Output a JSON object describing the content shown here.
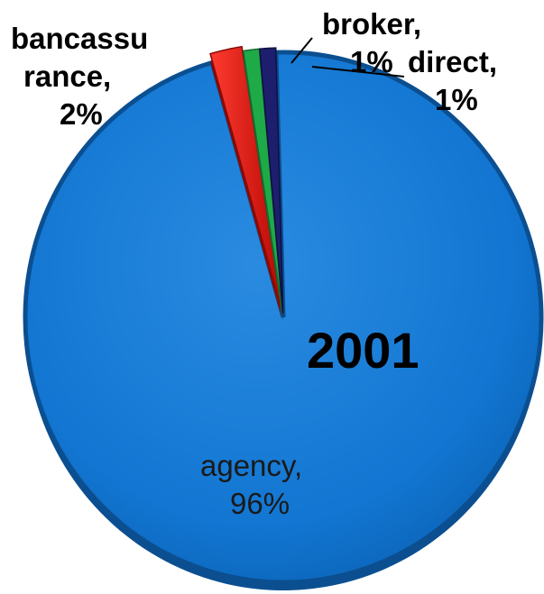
{
  "chart_data": {
    "type": "pie",
    "title": "2001",
    "slices": [
      {
        "label": "agency",
        "value": 96,
        "value_label": "96%",
        "color": "#0f73cf"
      },
      {
        "label": "bancassurance",
        "value": 2,
        "value_label": "2%",
        "color": "#e3120b"
      },
      {
        "label": "broker",
        "value": 1,
        "value_label": "1%",
        "color": "#1faa48"
      },
      {
        "label": "direct",
        "value": 1,
        "value_label": "1%",
        "color": "#1d1f6e"
      }
    ],
    "labels": {
      "agency": [
        "agency,",
        "96%"
      ],
      "bancassurance": [
        "bancassu",
        "rance,",
        "2%"
      ],
      "broker": [
        "broker,",
        "1%"
      ],
      "direct": [
        "direct,",
        "1%"
      ]
    },
    "style": "3d-exploded"
  }
}
